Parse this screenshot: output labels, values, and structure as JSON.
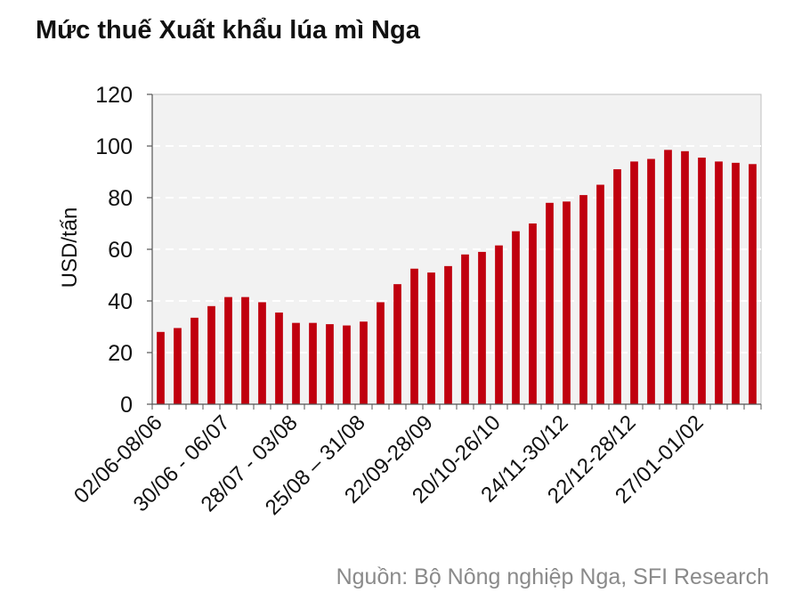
{
  "colors": {
    "bar": "#c0000e",
    "plot_background": "#f2f2f2",
    "plot_border": "#bfbfbf",
    "grid": "#ffffff",
    "text": "#111111",
    "source_text": "#8a8a8a"
  },
  "source": "Nguồn: Bộ Nông nghiệp Nga, SFI Research",
  "chart_data": {
    "type": "bar",
    "title": "Mức thuế Xuất khẩu lúa mì Nga",
    "xlabel": "",
    "ylabel": "USD/tấn",
    "ylim": [
      0,
      120
    ],
    "yticks": [
      0,
      20,
      40,
      60,
      80,
      100,
      120
    ],
    "grid": true,
    "legend": "none",
    "x_tick_labels": [
      "02/06-08/06",
      "30/06 - 06/07",
      "28/07 - 03/08",
      "25/08 – 31/08",
      "22/09-28/09",
      "20/10-26/10",
      "24/11-30/12",
      "22/12-28/12",
      "27/01-01/02"
    ],
    "values": [
      28,
      29.5,
      33.5,
      38,
      41.5,
      41.5,
      39.5,
      35.5,
      31.5,
      31.5,
      31,
      30.5,
      32,
      39.5,
      46.5,
      52.5,
      51,
      53.5,
      58,
      59,
      61.5,
      67,
      70,
      78,
      78.5,
      81,
      85,
      91,
      94,
      95,
      98.5,
      98,
      95.5,
      94,
      93.5,
      93
    ]
  }
}
